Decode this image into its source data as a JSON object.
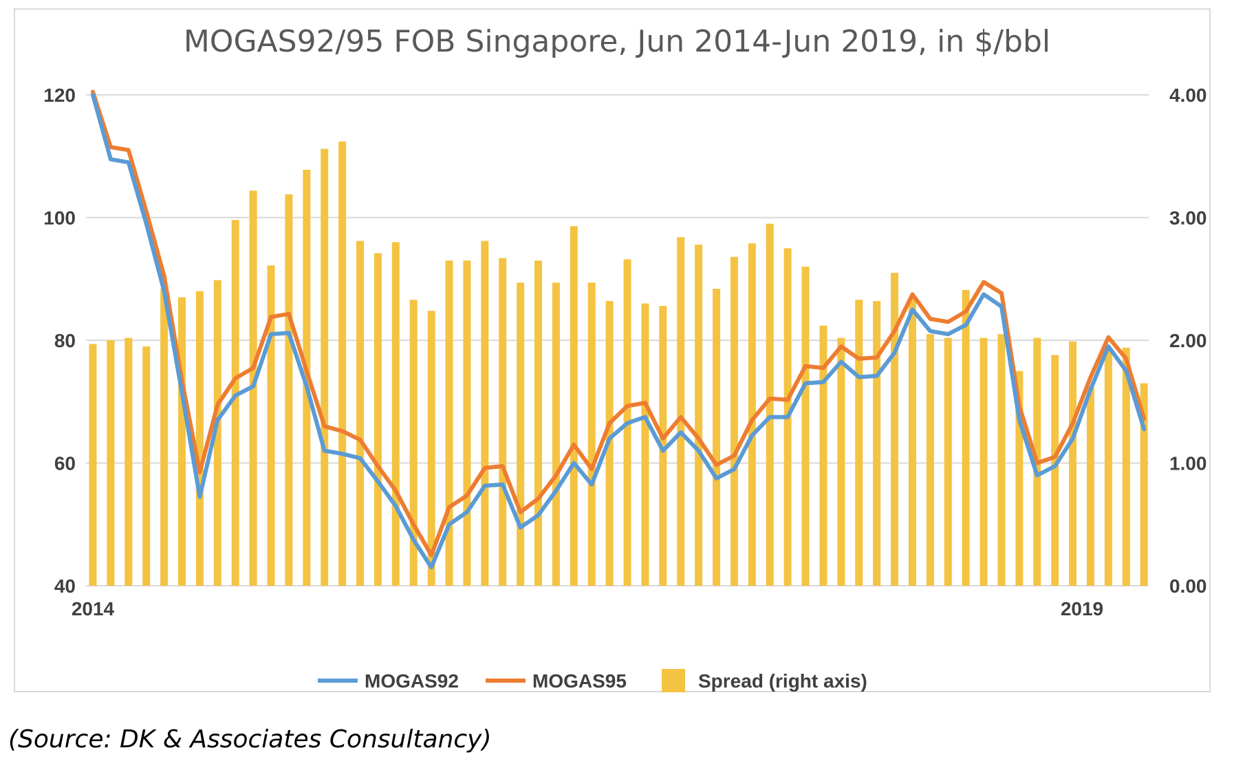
{
  "chart_data": {
    "type": "bar+line",
    "title": "MOGAS92/95 FOB Singapore, Jun 2014-Jun 2019, in $/bbl",
    "x_tick_labels": [
      "2014",
      "2019"
    ],
    "left_axis": {
      "min": 40,
      "max": 120,
      "ticks": [
        "40",
        "60",
        "80",
        "100",
        "120"
      ]
    },
    "right_axis": {
      "min": 0,
      "max": 4,
      "ticks": [
        "0.00",
        "1.00",
        "2.00",
        "3.00",
        "4.00"
      ]
    },
    "series": [
      {
        "name": "MOGAS92",
        "type": "line",
        "axis": "left",
        "color": "#5b9bd5",
        "values": [
          120,
          109.5,
          109,
          99,
          88,
          71.5,
          54.5,
          67,
          71,
          72.5,
          81,
          81.2,
          72.5,
          62,
          61.5,
          60.8,
          57,
          53,
          47.5,
          43,
          50,
          52,
          56.3,
          56.5,
          49.5,
          51.5,
          55.5,
          60,
          56.5,
          64,
          66.5,
          67.5,
          62,
          65,
          62,
          57.5,
          59,
          64.5,
          67.5,
          67.5,
          73,
          73.2,
          76.5,
          74,
          74.2,
          78,
          85,
          81.5,
          81,
          82.5,
          87.5,
          85.5,
          67,
          58,
          59.5,
          64,
          72,
          79,
          75,
          65.5
        ]
      },
      {
        "name": "MOGAS95",
        "type": "line",
        "axis": "left",
        "color": "#ed7d31",
        "values": [
          120.5,
          111.5,
          111,
          101,
          90.5,
          73.5,
          58.5,
          69.5,
          73.8,
          75.5,
          83.8,
          84.3,
          75,
          66,
          65.2,
          63.8,
          59.5,
          55.5,
          50,
          45,
          52.8,
          54.7,
          59.2,
          59.5,
          52,
          54.2,
          58,
          63,
          59,
          66.5,
          69.3,
          69.8,
          64,
          67.5,
          64,
          59.7,
          61.2,
          67,
          70.5,
          70.3,
          75.8,
          75.5,
          79,
          77,
          77.2,
          81.5,
          87.5,
          83.5,
          83,
          84.7,
          89.5,
          87.7,
          69.3,
          60,
          61,
          66.5,
          74,
          80.5,
          77,
          67.2
        ]
      },
      {
        "name": "Spread (right axis)",
        "type": "bar",
        "axis": "right",
        "color": "#f5c342",
        "values": [
          1.97,
          2.0,
          2.02,
          1.95,
          2.42,
          2.35,
          2.4,
          2.49,
          2.98,
          3.22,
          2.61,
          3.19,
          3.39,
          3.56,
          3.62,
          2.81,
          2.71,
          2.8,
          2.33,
          2.24,
          2.65,
          2.65,
          2.81,
          2.67,
          2.47,
          2.65,
          2.47,
          2.93,
          2.47,
          2.32,
          2.66,
          2.3,
          2.28,
          2.84,
          2.78,
          2.42,
          2.68,
          2.79,
          2.95,
          2.75,
          2.6,
          2.12,
          2.02,
          2.33,
          2.32,
          2.55,
          2.35,
          2.05,
          2.02,
          2.41,
          2.02,
          2.05,
          1.75,
          2.02,
          1.88,
          1.99,
          1.62,
          1.94,
          1.94,
          1.65
        ]
      }
    ],
    "legend": [
      "MOGAS92",
      "MOGAS95",
      "Spread (right axis)"
    ],
    "legend_position": "bottom",
    "gridlines": true
  },
  "source_note": "(Source: DK & Associates Consultancy)"
}
